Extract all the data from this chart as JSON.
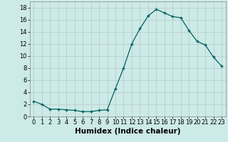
{
  "x": [
    0,
    1,
    2,
    3,
    4,
    5,
    6,
    7,
    8,
    9,
    10,
    11,
    12,
    13,
    14,
    15,
    16,
    17,
    18,
    19,
    20,
    21,
    22,
    23
  ],
  "y": [
    2.5,
    2.0,
    1.2,
    1.2,
    1.1,
    1.0,
    0.8,
    0.8,
    1.0,
    1.1,
    4.6,
    8.0,
    12.0,
    14.5,
    16.6,
    17.7,
    17.1,
    16.5,
    16.3,
    14.2,
    12.4,
    11.8,
    9.8,
    8.3
  ],
  "xlabel": "Humidex (Indice chaleur)",
  "xlim": [
    -0.5,
    23.5
  ],
  "ylim": [
    0,
    19
  ],
  "yticks": [
    0,
    2,
    4,
    6,
    8,
    10,
    12,
    14,
    16,
    18
  ],
  "xticks": [
    0,
    1,
    2,
    3,
    4,
    5,
    6,
    7,
    8,
    9,
    10,
    11,
    12,
    13,
    14,
    15,
    16,
    17,
    18,
    19,
    20,
    21,
    22,
    23
  ],
  "line_color": "#006060",
  "marker": "+",
  "bg_color": "#cceae7",
  "grid_color": "#b8c8c4",
  "xlabel_fontsize": 7.5,
  "tick_fontsize": 6
}
